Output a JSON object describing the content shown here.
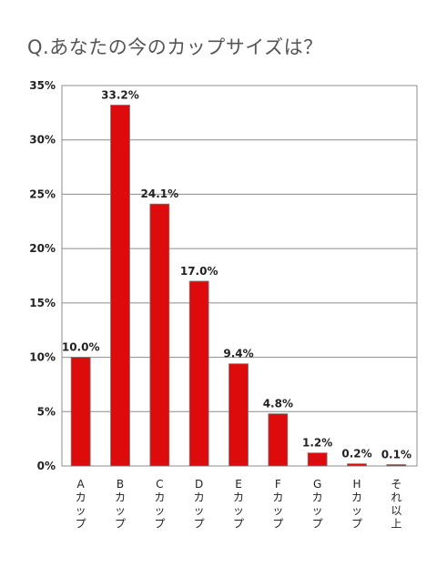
{
  "chart_data": {
    "type": "bar",
    "title": "Q.あなたの今のカップサイズは？",
    "xlabel": "",
    "ylabel": "",
    "categories": [
      "Aカップ",
      "Bカップ",
      "Cカップ",
      "Dカップ",
      "Eカップ",
      "Fカップ",
      "Gカップ",
      "Hカップ",
      "それ以上"
    ],
    "values": [
      10.0,
      33.2,
      24.1,
      17.0,
      9.4,
      4.8,
      1.2,
      0.2,
      0.1
    ],
    "data_labels": [
      "10.0%",
      "33.2%",
      "24.1%",
      "17.0%",
      "9.4%",
      "4.8%",
      "1.2%",
      "0.2%",
      "0.1%"
    ],
    "ylim": [
      0,
      35
    ],
    "yticks": [
      0,
      5,
      10,
      15,
      20,
      25,
      30,
      35
    ],
    "ytick_labels": [
      "0%",
      "5%",
      "10%",
      "15%",
      "20%",
      "25%",
      "30%",
      "35%"
    ],
    "grid": true,
    "legend": "none",
    "colors": {
      "bar": "#dd0b0b",
      "bar_edge": "#7a7a7a",
      "grid": "#8c8c8c",
      "title": "#555555"
    }
  }
}
